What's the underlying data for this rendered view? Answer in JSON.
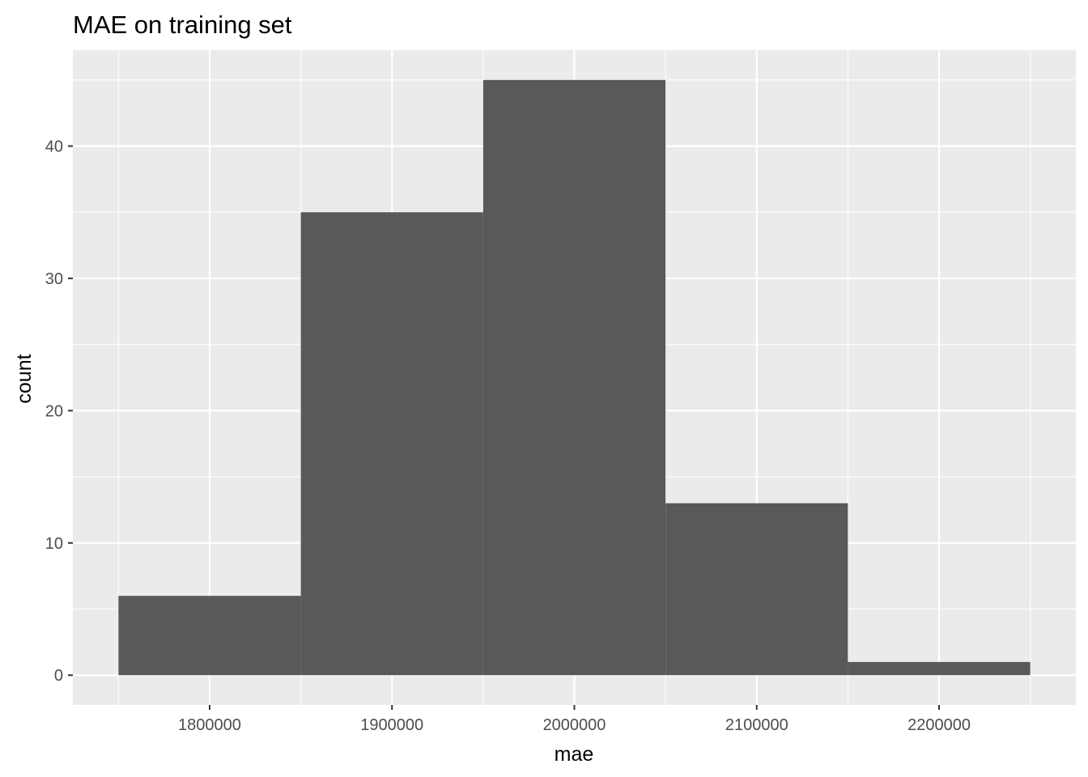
{
  "chart_data": {
    "type": "bar",
    "title": "MAE on training set",
    "xlabel": "mae",
    "ylabel": "count",
    "bins": [
      {
        "start": 1750000,
        "end": 1850000,
        "count": 6
      },
      {
        "start": 1850000,
        "end": 1950000,
        "count": 35
      },
      {
        "start": 1950000,
        "end": 2050000,
        "count": 45
      },
      {
        "start": 2050000,
        "end": 2150000,
        "count": 13
      },
      {
        "start": 2150000,
        "end": 2250000,
        "count": 1
      }
    ],
    "xlim": [
      1725000,
      2275000
    ],
    "ylim": [
      -2.25,
      47.25
    ],
    "x_ticks": [
      1800000,
      1900000,
      2000000,
      2100000,
      2200000
    ],
    "x_tick_labels": [
      "1800000",
      "1900000",
      "2000000",
      "2100000",
      "2200000"
    ],
    "y_ticks": [
      0,
      10,
      20,
      30,
      40
    ],
    "y_tick_labels": [
      "0",
      "10",
      "20",
      "30",
      "40"
    ],
    "grid": true,
    "legend": "none",
    "colors": {
      "bar_fill": "#595959",
      "panel_background": "#ebebeb",
      "grid": "#ffffff",
      "tick_label": "#4d4d4d",
      "tick_mark": "#333333"
    }
  }
}
